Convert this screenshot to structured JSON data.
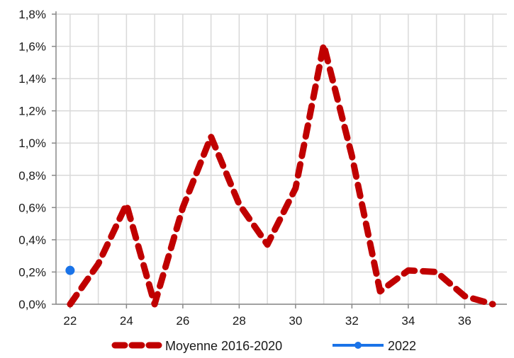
{
  "chart_data": {
    "type": "line",
    "title": "",
    "xlabel": "",
    "ylabel": "",
    "x_ticks": [
      "22",
      "24",
      "26",
      "28",
      "30",
      "32",
      "34",
      "36"
    ],
    "y_ticks": [
      "0,0%",
      "0,2%",
      "0,4%",
      "0,6%",
      "0,8%",
      "1,0%",
      "1,2%",
      "1,4%",
      "1,6%",
      "1,8%"
    ],
    "xlim": [
      21.5,
      37.5
    ],
    "ylim": [
      0,
      1.8
    ],
    "grid": true,
    "legend_position": "bottom",
    "series": [
      {
        "name": "Moyenne 2016-2020",
        "color": "#c00000",
        "style": "dashed",
        "x": [
          22,
          23,
          24,
          25,
          26,
          27,
          28,
          29,
          30,
          31,
          32,
          33,
          34,
          35,
          36,
          37
        ],
        "y": [
          0.0,
          0.25,
          0.62,
          0.0,
          0.6,
          1.04,
          0.62,
          0.37,
          0.72,
          1.61,
          0.92,
          0.08,
          0.21,
          0.2,
          0.05,
          0.0
        ]
      },
      {
        "name": "2022",
        "color": "#1a73e8",
        "style": "solid",
        "x": [
          22
        ],
        "y": [
          0.21
        ]
      }
    ]
  }
}
